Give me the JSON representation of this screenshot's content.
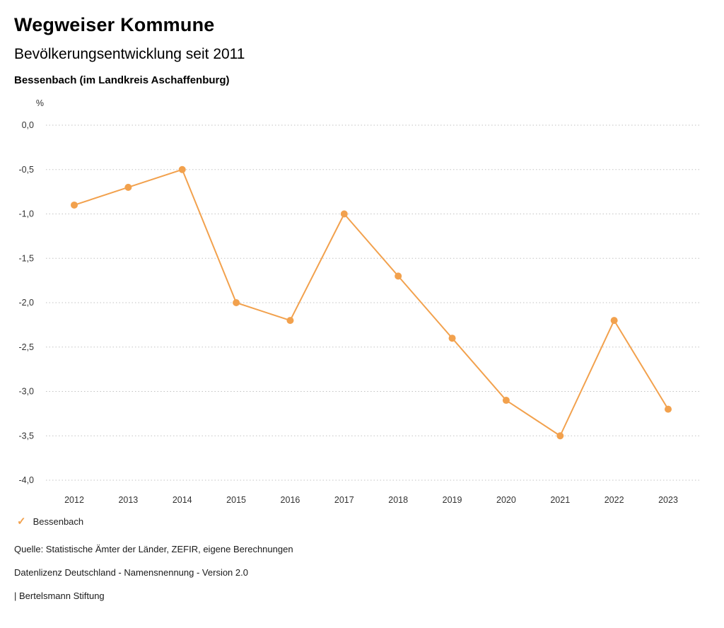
{
  "header": {
    "title": "Wegweiser Kommune",
    "subtitle": "Bevölkerungsentwicklung seit 2011",
    "location": "Bessenbach (im Landkreis Aschaffenburg)"
  },
  "chart_data": {
    "type": "line",
    "title": "Bevölkerungsentwicklung seit 2011",
    "unit_label": "%",
    "categories": [
      "2012",
      "2013",
      "2014",
      "2015",
      "2016",
      "2017",
      "2018",
      "2019",
      "2020",
      "2021",
      "2022",
      "2023"
    ],
    "series": [
      {
        "name": "Bessenbach",
        "color": "#F2A14D",
        "values": [
          -0.9,
          -0.7,
          -0.5,
          -2.0,
          -2.2,
          -1.0,
          -1.7,
          -2.4,
          -3.1,
          -3.5,
          -2.2,
          -3.2
        ]
      }
    ],
    "ylim": [
      -4.0,
      0.0
    ],
    "ytick_step": 0.5,
    "ytick_labels": [
      "0,0",
      "-0,5",
      "-1,0",
      "-1,5",
      "-2,0",
      "-2,5",
      "-3,0",
      "-3,5",
      "-4,0"
    ],
    "grid": "horizontal-dotted",
    "grid_color": "#c2c2c2",
    "tick_text_color": "#333333",
    "legend_position": "bottom-left"
  },
  "legend": {
    "items": [
      {
        "label": "Bessenbach",
        "marker": "check",
        "color": "#F2A14D"
      }
    ]
  },
  "footer": {
    "source": "Quelle: Statistische Ämter der Länder, ZEFIR, eigene Berechnungen",
    "license": "Datenlizenz Deutschland - Namensnennung - Version 2.0",
    "attribution": "| Bertelsmann Stiftung"
  }
}
